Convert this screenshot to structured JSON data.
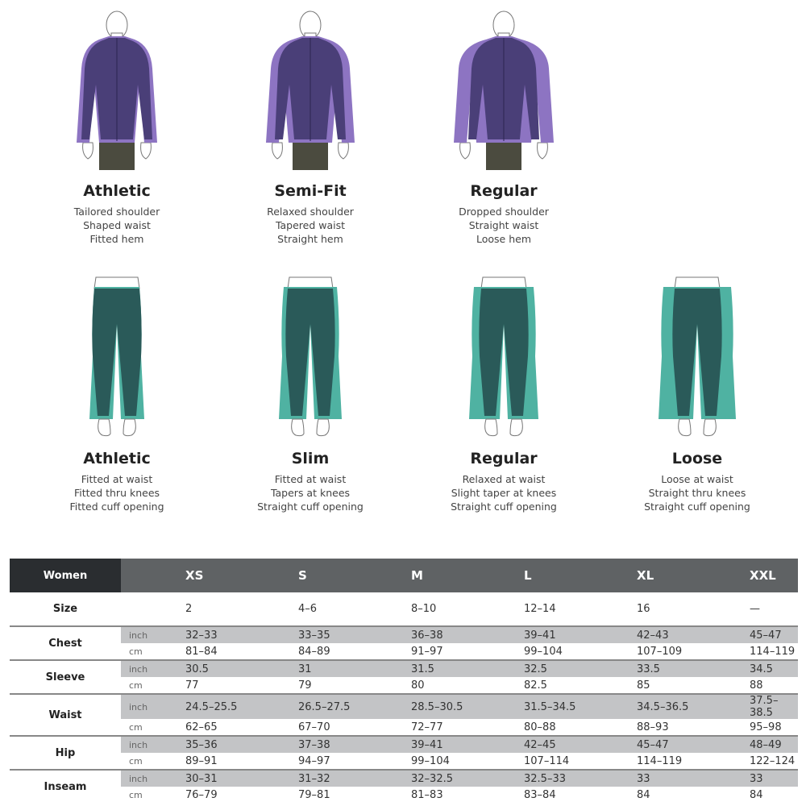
{
  "colors": {
    "jacket_dark": "#4a3f78",
    "jacket_light": "#8d74c2",
    "shorts": "#4b4b3f",
    "pants_dark": "#2a5a59",
    "pants_light": "#4fb2a2",
    "header_dark": "#2a2d30",
    "header_gray": "#5f6264",
    "row_gray": "#c3c4c6"
  },
  "tops": [
    {
      "name": "Athletic",
      "lines": [
        "Tailored shoulder",
        "Shaped waist",
        "Fitted hem"
      ]
    },
    {
      "name": "Semi-Fit",
      "lines": [
        "Relaxed shoulder",
        "Tapered waist",
        "Straight hem"
      ]
    },
    {
      "name": "Regular",
      "lines": [
        "Dropped shoulder",
        "Straight waist",
        "Loose hem"
      ]
    }
  ],
  "bottoms": [
    {
      "name": "Athletic",
      "lines": [
        "Fitted at waist",
        "Fitted thru knees",
        "Fitted cuff opening"
      ]
    },
    {
      "name": "Slim",
      "lines": [
        "Fitted at waist",
        "Tapers at knees",
        "Straight cuff opening"
      ]
    },
    {
      "name": "Regular",
      "lines": [
        "Relaxed at waist",
        "Slight taper at knees",
        "Straight cuff opening"
      ]
    },
    {
      "name": "Loose",
      "lines": [
        "Loose at waist",
        "Straight thru knees",
        "Straight cuff opening"
      ]
    }
  ],
  "table": {
    "corner": "Women",
    "sizes": [
      "XS",
      "S",
      "M",
      "L",
      "XL",
      "XXL"
    ],
    "size_row": {
      "label": "Size",
      "values": [
        "2",
        "4–6",
        "8–10",
        "12–14",
        "16",
        "—"
      ]
    },
    "measures": [
      {
        "label": "Chest",
        "inch": [
          "32–33",
          "33–35",
          "36–38",
          "39–41",
          "42–43",
          "45–47"
        ],
        "cm": [
          "81–84",
          "84–89",
          "91–97",
          "99–104",
          "107–109",
          "114–119"
        ]
      },
      {
        "label": "Sleeve",
        "inch": [
          "30.5",
          "31",
          "31.5",
          "32.5",
          "33.5",
          "34.5"
        ],
        "cm": [
          "77",
          "79",
          "80",
          "82.5",
          "85",
          "88"
        ]
      },
      {
        "label": "Waist",
        "inch": [
          "24.5–25.5",
          "26.5–27.5",
          "28.5–30.5",
          "31.5–34.5",
          "34.5–36.5",
          "37.5–38.5"
        ],
        "cm": [
          "62–65",
          "67–70",
          "72–77",
          "80–88",
          "88–93",
          "95–98"
        ]
      },
      {
        "label": "Hip",
        "inch": [
          "35–36",
          "37–38",
          "39–41",
          "42–45",
          "45–47",
          "48–49"
        ],
        "cm": [
          "89–91",
          "94–97",
          "99–104",
          "107–114",
          "114–119",
          "122–124"
        ]
      },
      {
        "label": "Inseam",
        "inch": [
          "30–31",
          "31–32",
          "32–32.5",
          "32.5–33",
          "33",
          "33"
        ],
        "cm": [
          "76–79",
          "79–81",
          "81–83",
          "83–84",
          "84",
          "84"
        ]
      }
    ],
    "unit_inch": "inch",
    "unit_cm": "cm"
  }
}
